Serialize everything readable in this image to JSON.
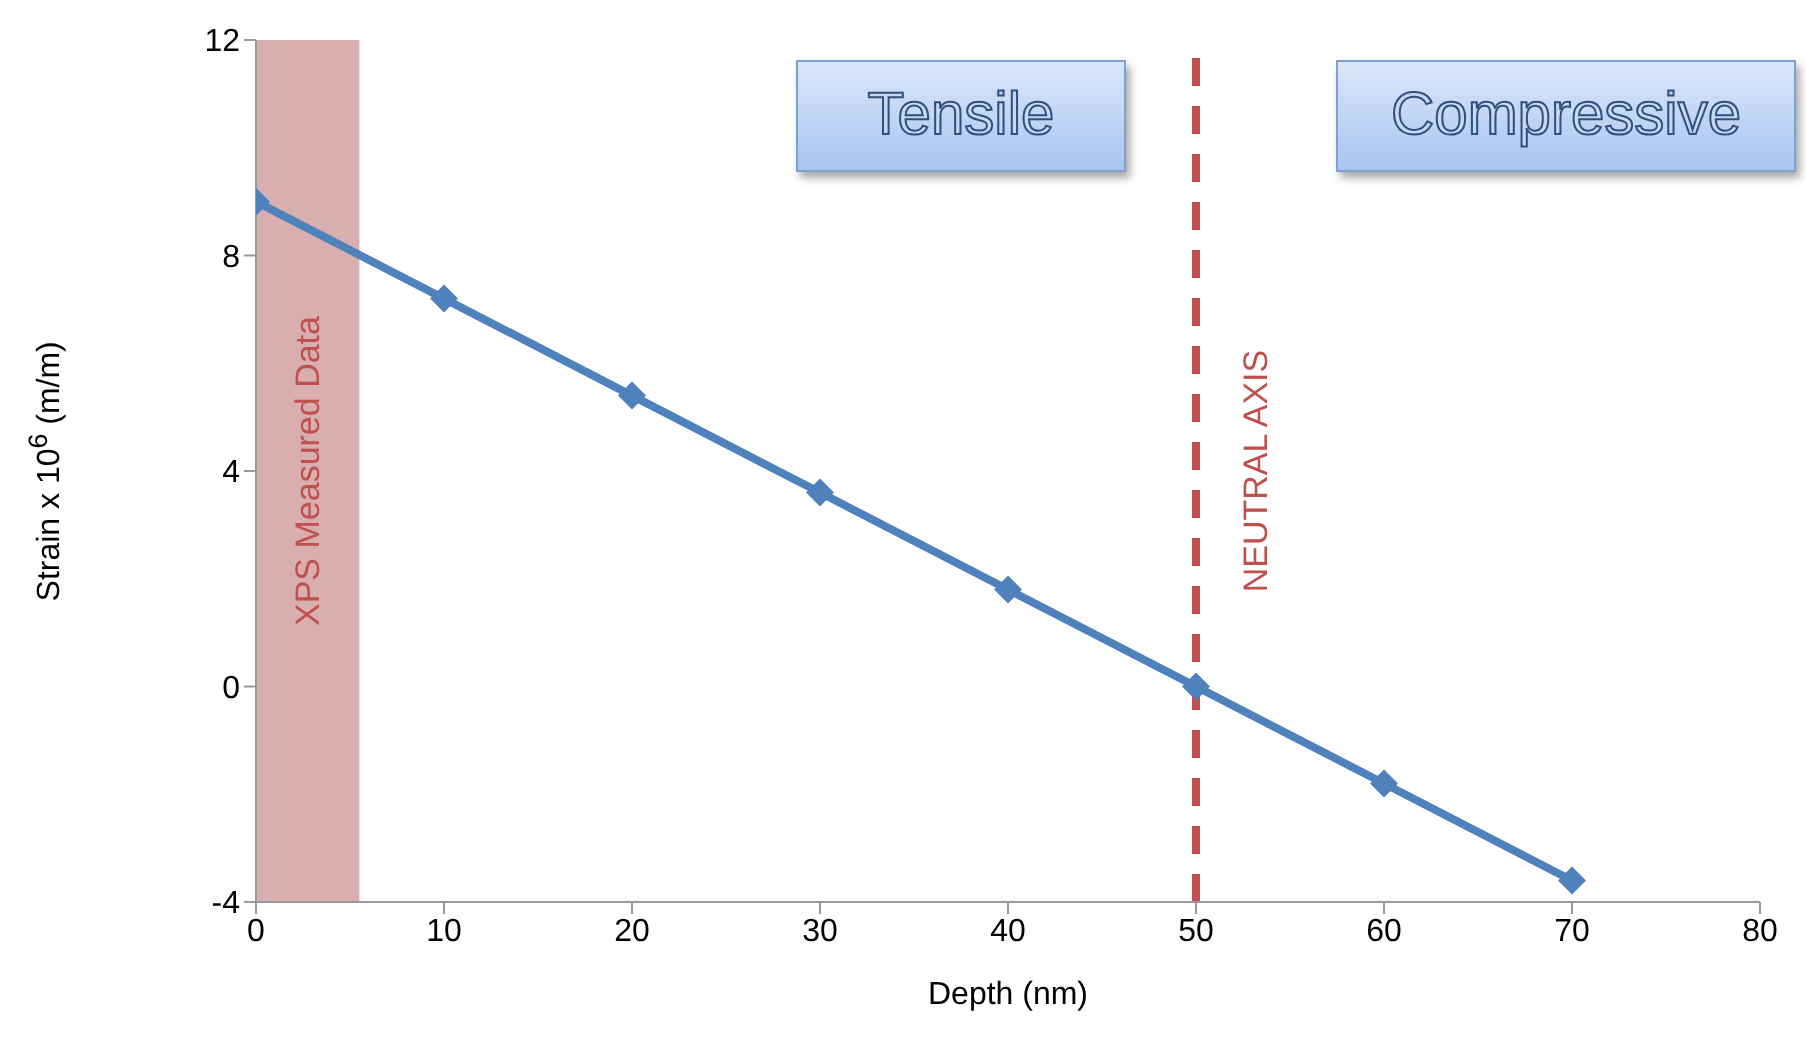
{
  "chart_data": {
    "type": "line",
    "xlabel": "Depth (nm)",
    "ylabel": "Strain x 10$^{6}$  (m/m)",
    "x": [
      0,
      10,
      20,
      30,
      40,
      50,
      60,
      70
    ],
    "series": [
      {
        "color": "#4f81bd",
        "values": [
          9,
          7.2,
          5.4,
          3.6,
          1.8,
          0,
          -1.8,
          -3.6
        ]
      }
    ],
    "xlim": [
      0,
      80
    ],
    "xticks": [
      0,
      10,
      20,
      30,
      40,
      50,
      60,
      70,
      80
    ],
    "ylim": [
      -4,
      12
    ],
    "yticks": [
      -4,
      0,
      4,
      8,
      12
    ],
    "marker": "diamond",
    "line_style": "solid",
    "bands": [
      {
        "axis": "x",
        "from": 0,
        "to": 5.5,
        "label": "XPS Measured Data",
        "color": "#d9aeae"
      }
    ],
    "ref_lines": [
      {
        "axis": "x",
        "value": 50,
        "label": "NEUTRAL AXIS",
        "color": "#c0504d",
        "line_style": "dashed"
      }
    ],
    "annotations": [
      "Tensile",
      "Compressive"
    ]
  }
}
